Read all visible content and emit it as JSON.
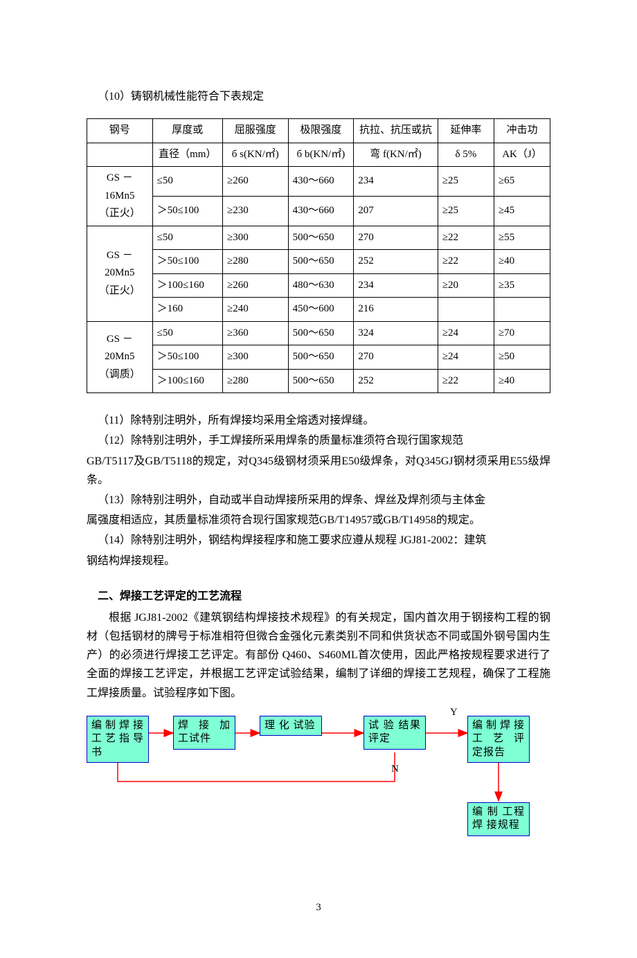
{
  "heading10": "（10）铸钢机械性能符合下表规定",
  "table": {
    "columns": [
      {
        "l1": "钢号",
        "l2": ""
      },
      {
        "l1": "厚度或",
        "l2": "直径（mm）"
      },
      {
        "l1": "屈服强度",
        "l2": "б s(KN/㎡)"
      },
      {
        "l1": "极限强度",
        "l2": "б b(KN/㎡)"
      },
      {
        "l1": "抗拉、抗压或抗",
        "l2": "弯 f(KN/㎡)"
      },
      {
        "l1": "延伸率",
        "l2": "δ 5%"
      },
      {
        "l1": "冲击功",
        "l2": "AK（J）"
      }
    ],
    "groups": [
      {
        "steel_l1": "GS － 16Mn5",
        "steel_l2": "（正火）",
        "rows": [
          {
            "thick": "≤50",
            "yield": "≥260",
            "ult": "430～660",
            "f": "234",
            "elong": "≥25",
            "ak": "≥65"
          },
          {
            "thick": "＞50≤100",
            "yield": "≥230",
            "ult": "430～660",
            "f": "207",
            "elong": "≥25",
            "ak": "≥45"
          }
        ]
      },
      {
        "steel_l1": "GS － 20Mn5",
        "steel_l2": "（正火）",
        "rows": [
          {
            "thick": "≤50",
            "yield": "≥300",
            "ult": "500～650",
            "f": "270",
            "elong": "≥22",
            "ak": "≥55"
          },
          {
            "thick": "＞50≤100",
            "yield": "≥280",
            "ult": "500～650",
            "f": "252",
            "elong": "≥22",
            "ak": "≥40"
          },
          {
            "thick": "＞100≤160",
            "yield": "≥260",
            "ult": "480～630",
            "f": "234",
            "elong": "≥20",
            "ak": "≥35"
          },
          {
            "thick": "＞160",
            "yield": "≥240",
            "ult": "450～600",
            "f": "216",
            "elong": "",
            "ak": ""
          }
        ]
      },
      {
        "steel_l1": "GS － 20Mn5",
        "steel_l2": "（调质）",
        "rows": [
          {
            "thick": "≤50",
            "yield": "≥360",
            "ult": "500～650",
            "f": "324",
            "elong": "≥24",
            "ak": "≥70"
          },
          {
            "thick": "＞50≤100",
            "yield": "≥300",
            "ult": "500～650",
            "f": "270",
            "elong": "≥24",
            "ak": "≥50"
          },
          {
            "thick": "＞100≤160",
            "yield": "≥280",
            "ult": "500～650",
            "f": "252",
            "elong": "≥22",
            "ak": "≥40"
          }
        ]
      }
    ]
  },
  "p11": "（11）除特别注明外，所有焊接均采用全熔透对接焊缝。",
  "p12a": "（12）除特别注明外，手工焊接所采用焊条的质量标准须符合现行国家规范",
  "p12b": "GB/T5117及GB/T5118的规定，对Q345级钢材须采用E50级焊条，对Q345GJ钢材须采用E55级焊条。",
  "p13a": "（13）除特别注明外，自动或半自动焊接所采用的焊条、焊丝及焊剂须与主体金",
  "p13b": "属强度相适应，其质量标准须符合现行国家规范GB/T14957或GB/T14958的规定。",
  "p14a": "（14）除特别注明外，钢结构焊接程序和施工要求应遵从规程 JGJ81-2002：建筑",
  "p14b": "钢结构焊接规程。",
  "section2_title": "二、焊接工艺评定的工艺流程",
  "section2_body": "根据 JGJ81-2002《建筑钢结构焊接技术规程》的有关规定，国内首次用于钢接构工程的钢材（包括钢材的牌号于标准相符但微合金强化元素类别不同和供货状态不同或国外钢号国内生产）的必须进行焊接工艺评定。有部份 Q460、S460ML首次使用，因此严格按规程要求进行了全面的焊接工艺评定，并根据工艺评定试验结果，编制了详细的焊接工艺规程，确保了工程施工焊接质量。试验程序如下图。",
  "flow": {
    "b1": "编制焊接工艺指导书",
    "b2": "焊 接 加 工试件",
    "b3": "理 化 试验",
    "b4": "试 验 结果评定",
    "b5": "编制焊接工 艺 评 定报告",
    "b6": "编 制 工程 焊 接规程",
    "labelY": "Y",
    "labelN": "N",
    "boxFill": "#7fffd4",
    "boxBorder": "#0000cc",
    "arrowColor": "#ff0000"
  },
  "pageNumber": "3"
}
